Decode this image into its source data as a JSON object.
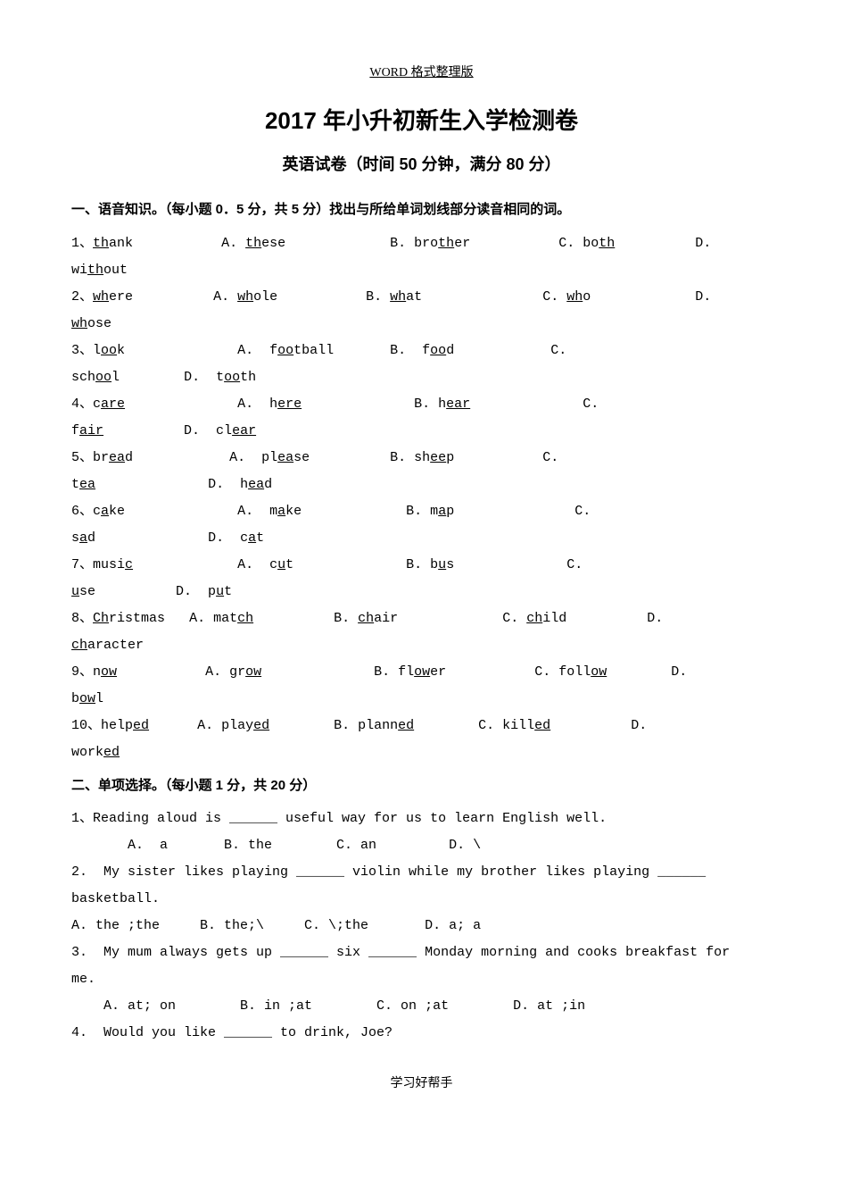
{
  "header": "WORD 格式整理版",
  "title": "2017 年小升初新生入学检测卷",
  "subtitle": "英语试卷（时间 50 分钟，满分 80 分）",
  "section1_head": "一、语音知识。（每小题 0．5 分，共 5 分）找出与所给单词划线部分读音相同的词。",
  "section2_head": "二、单项选择。（每小题 1 分，共 20 分）",
  "s1": {
    "q1_num": "1、",
    "q1_word_a": "th",
    "q1_word_b": "ank",
    "q1_A": "A. ",
    "q1_A_u": "th",
    "q1_A_r": "ese",
    "q1_B": "B. bro",
    "q1_B_u": "th",
    "q1_B_r": "er",
    "q1_C": "C. bo",
    "q1_C_u": "th",
    "q1_C_r": "",
    "q1_D": "D.",
    "q1_cont_a": "wi",
    "q1_cont_u": "th",
    "q1_cont_r": "out",
    "q2_num": "2、",
    "q2_word_u": "wh",
    "q2_word_r": "ere",
    "q2_A": "A. ",
    "q2_A_u": "wh",
    "q2_A_r": "ole",
    "q2_B": "B. ",
    "q2_B_u": "wh",
    "q2_B_r": "at",
    "q2_C": "C. ",
    "q2_C_u": "wh",
    "q2_C_r": "o",
    "q2_D": "D.",
    "q2_cont_u": "wh",
    "q2_cont_r": "ose",
    "q3_num": "3、",
    "q3_word_a": "l",
    "q3_word_u": "oo",
    "q3_word_r": "k",
    "q3_A": "A.  f",
    "q3_A_u": "oo",
    "q3_A_r": "tball",
    "q3_B": "B.  f",
    "q3_B_u": "oo",
    "q3_B_r": "d",
    "q3_C": "C.",
    "q3_cont1_a": "sch",
    "q3_cont1_u": "oo",
    "q3_cont1_r": "l",
    "q3_cont2": "D.  t",
    "q3_cont2_u": "oo",
    "q3_cont2_r": "th",
    "q4_num": "4、",
    "q4_word_a": "c",
    "q4_word_u": "are",
    "q4_word_r": "",
    "q4_A": "A.  h",
    "q4_A_u": "ere",
    "q4_A_r": "",
    "q4_B": "B. h",
    "q4_B_u": "ear",
    "q4_B_r": "",
    "q4_C": "C.",
    "q4_cont1_a": "f",
    "q4_cont1_u": "air",
    "q4_cont1_r": "",
    "q4_cont2": "D.  cl",
    "q4_cont2_u": "ear",
    "q4_cont2_r": "",
    "q5_num": "5、",
    "q5_word_a": "br",
    "q5_word_u": "ea",
    "q5_word_r": "d",
    "q5_A": "A.  pl",
    "q5_A_u": "ea",
    "q5_A_r": "se",
    "q5_B": "B. sh",
    "q5_B_u": "ee",
    "q5_B_r": "p",
    "q5_C": "C.",
    "q5_cont1_a": "t",
    "q5_cont1_u": "ea",
    "q5_cont1_r": "",
    "q5_cont2": "D.  h",
    "q5_cont2_u": "ea",
    "q5_cont2_r": "d",
    "q6_num": "6、",
    "q6_word_a": "c",
    "q6_word_u": "a",
    "q6_word_r": "ke",
    "q6_A": "A.  m",
    "q6_A_u": "a",
    "q6_A_r": "ke",
    "q6_B": "B. m",
    "q6_B_u": "a",
    "q6_B_r": "p",
    "q6_C": "C.",
    "q6_cont1_a": "s",
    "q6_cont1_u": "a",
    "q6_cont1_r": "d",
    "q6_cont2": "D.  c",
    "q6_cont2_u": "a",
    "q6_cont2_r": "t",
    "q7_num": "7、",
    "q7_word_a": "musi",
    "q7_word_u": "c",
    "q7_word_r": "",
    "q7_A": "A.  c",
    "q7_A_u": "u",
    "q7_A_r": "t",
    "q7_B": "B. b",
    "q7_B_u": "u",
    "q7_B_r": "s",
    "q7_C": "C.",
    "q7_cont1_u": "u",
    "q7_cont1_r": "se",
    "q7_cont2": "D.  p",
    "q7_cont2_u": "u",
    "q7_cont2_r": "t",
    "q8_num": "8、",
    "q8_word_u": "Ch",
    "q8_word_r": "ristmas",
    "q8_A": "A. mat",
    "q8_A_u": "ch",
    "q8_A_r": "",
    "q8_B": "B. ",
    "q8_B_u": "ch",
    "q8_B_r": "air",
    "q8_C": "C. ",
    "q8_C_u": "ch",
    "q8_C_r": "ild",
    "q8_D": "D.",
    "q8_cont_u": "ch",
    "q8_cont_r": "aracter",
    "q9_num": "9、",
    "q9_word_a": "n",
    "q9_word_u": "ow",
    "q9_word_r": "",
    "q9_A": "A. gr",
    "q9_A_u": "ow",
    "q9_A_r": "",
    "q9_B": "B. fl",
    "q9_B_u": "ow",
    "q9_B_r": "er",
    "q9_C": "C. foll",
    "q9_C_u": "ow",
    "q9_C_r": "",
    "q9_D": "D.",
    "q9_cont_a": "b",
    "q9_cont_u": "ow",
    "q9_cont_r": "l",
    "q10_num": "10、",
    "q10_word_a": "help",
    "q10_word_u": "ed",
    "q10_word_r": "",
    "q10_A": "A. play",
    "q10_A_u": "ed",
    "q10_A_r": "",
    "q10_B": "B. plann",
    "q10_B_u": "ed",
    "q10_B_r": "",
    "q10_C": "C. kill",
    "q10_C_u": "ed",
    "q10_C_r": "",
    "q10_D": "D.",
    "q10_cont_a": "work",
    "q10_cont_u": "ed",
    "q10_cont_r": ""
  },
  "s2": {
    "q1_line": "1、Reading aloud is ______ useful way for us to learn English well.",
    "q1_opts": "       A.  a       B. the        C. an         D. \\",
    "q2_line1": "2.  My sister likes playing ______ violin while my brother likes playing ______",
    "q2_line2": "basketball.",
    "q2_opts": "A. the ;the     B. the;\\     C. \\;the       D. a; a",
    "q3_line1": "3.  My mum always gets up ______ six ______ Monday morning and cooks breakfast for",
    "q3_line2": "me.",
    "q3_opts": "    A. at; on        B. in ;at        C. on ;at        D. at ;in",
    "q4_line": "4.  Would you like ______ to drink, Joe?"
  },
  "footer": "学习好帮手"
}
